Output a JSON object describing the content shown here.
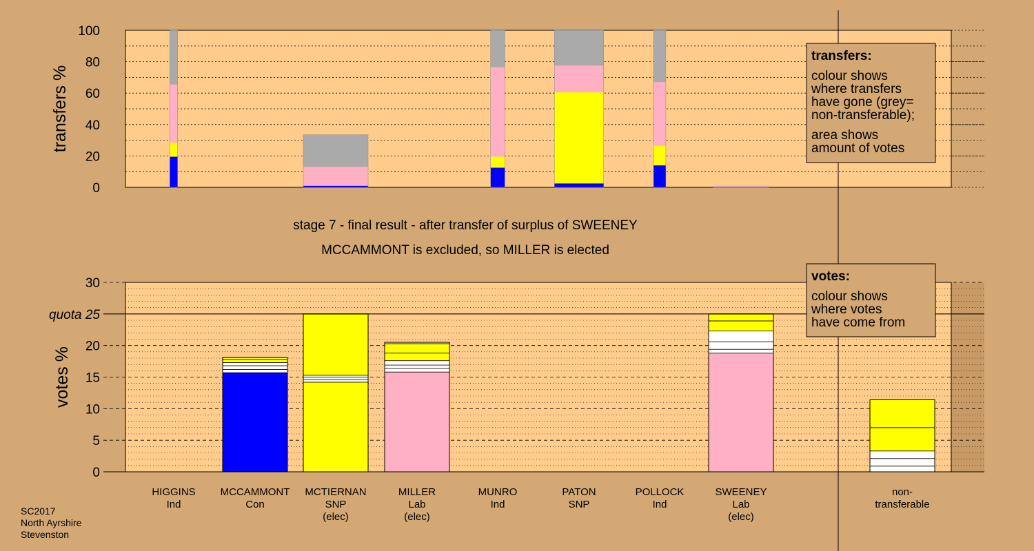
{
  "chart_data": [
    {
      "type": "bar",
      "stacked": true,
      "ylabel": "transfers %",
      "ylim": [
        0,
        100
      ],
      "yticks": [
        "0",
        "20",
        "40",
        "60",
        "80",
        "100"
      ],
      "grid": true,
      "categories": [
        "HIGGINS",
        "MCCAMMONT",
        "MCTIERNAN",
        "MILLER",
        "MUNRO",
        "PATON",
        "POLLOCK",
        "SWEENEY"
      ],
      "bars": [
        {
          "category": "HIGGINS",
          "width": 0.12,
          "segments": [
            {
              "color": "#0000ff",
              "value": 19.5
            },
            {
              "color": "#ffff00",
              "value": 9
            },
            {
              "color": "#ffb0c4",
              "value": 37
            },
            {
              "color": "#aaaaaa",
              "value": 34.5
            }
          ]
        },
        {
          "category": "MCTIERNAN",
          "width": 1.0,
          "segments": [
            {
              "color": "#0000ff",
              "value": 1
            },
            {
              "color": "#ffb0c4",
              "value": 12
            },
            {
              "color": "#aaaaaa",
              "value": 20.5
            }
          ]
        },
        {
          "category": "MUNRO",
          "width": 0.22,
          "segments": [
            {
              "color": "#0000ff",
              "value": 12.5
            },
            {
              "color": "#ffff00",
              "value": 7
            },
            {
              "color": "#ffb0c4",
              "value": 57
            },
            {
              "color": "#aaaaaa",
              "value": 23.5
            }
          ]
        },
        {
          "category": "PATON",
          "width": 0.76,
          "segments": [
            {
              "color": "#0000ff",
              "value": 2.5
            },
            {
              "color": "#ffff00",
              "value": 58
            },
            {
              "color": "#ffb0c4",
              "value": 17
            },
            {
              "color": "#aaaaaa",
              "value": 22.5
            }
          ]
        },
        {
          "category": "POLLOCK",
          "width": 0.19,
          "segments": [
            {
              "color": "#0000ff",
              "value": 14
            },
            {
              "color": "#ffff00",
              "value": 12.5
            },
            {
              "color": "#ffb0c4",
              "value": 40.5
            },
            {
              "color": "#aaaaaa",
              "value": 33
            }
          ]
        },
        {
          "category": "SWEENEY",
          "width": 0.86,
          "segments": [
            {
              "color": "#ffb0c4",
              "value": 0.8
            }
          ]
        }
      ],
      "legend": {
        "title": "transfers:",
        "lines": [
          "colour shows",
          "where transfers",
          "have gone (grey=",
          "non-transferable);",
          "area shows",
          "amount of votes"
        ]
      }
    },
    {
      "type": "bar",
      "stacked": true,
      "ylabel": "votes %",
      "ylim": [
        0,
        30
      ],
      "yticks": [
        "0",
        "5",
        "10",
        "15",
        "20",
        "25",
        "30"
      ],
      "quota": {
        "label": "quota",
        "value": 25
      },
      "grid": true,
      "categories": [
        "HIGGINS",
        "MCCAMMONT",
        "MCTIERNAN",
        "MILLER",
        "MUNRO",
        "PATON",
        "POLLOCK",
        "SWEENEY",
        "non-transferable"
      ],
      "bars": [
        {
          "category": "MCCAMMONT",
          "segments": [
            {
              "color": "#0000ff",
              "value": 15.7
            },
            {
              "color": "#ffffff",
              "value": 0.5
            },
            {
              "color": "#ffffff",
              "value": 0.6
            },
            {
              "color": "#ffffff",
              "value": 0.5
            },
            {
              "color": "#ffff00",
              "value": 0.5
            },
            {
              "color": "#ffff00",
              "value": 0.3
            }
          ]
        },
        {
          "category": "MCTIERNAN",
          "segments": [
            {
              "color": "#ffff00",
              "value": 14.2
            },
            {
              "color": "#ffffff",
              "value": 0.4
            },
            {
              "color": "#ffffff",
              "value": 0.4
            },
            {
              "color": "#ffffff",
              "value": 0.3
            },
            {
              "color": "#ffff00",
              "value": 9.7
            }
          ]
        },
        {
          "category": "MILLER",
          "segments": [
            {
              "color": "#ffb0c4",
              "value": 15.8
            },
            {
              "color": "#ffffff",
              "value": 0.6
            },
            {
              "color": "#ffffff",
              "value": 0.5
            },
            {
              "color": "#ffffff",
              "value": 0.7
            },
            {
              "color": "#ffff00",
              "value": 1.2
            },
            {
              "color": "#ffff00",
              "value": 1.5
            },
            {
              "color": "#ffffff",
              "value": 0.2
            }
          ]
        },
        {
          "category": "SWEENEY",
          "segments": [
            {
              "color": "#ffb0c4",
              "value": 18.8
            },
            {
              "color": "#ffffff",
              "value": 0.6
            },
            {
              "color": "#ffffff",
              "value": 1.2
            },
            {
              "color": "#ffffff",
              "value": 1.7
            },
            {
              "color": "#ffff00",
              "value": 1.6
            },
            {
              "color": "#ffff00",
              "value": 1.1
            }
          ]
        },
        {
          "category": "non-transferable",
          "segments": [
            {
              "color": "#ffffff",
              "value": 0.9
            },
            {
              "color": "#ffffff",
              "value": 1.2
            },
            {
              "color": "#ffffff",
              "value": 1.2
            },
            {
              "color": "#ffff00",
              "value": 3.7
            },
            {
              "color": "#ffff00",
              "value": 4.4
            }
          ]
        }
      ],
      "legend": {
        "title": "votes:",
        "lines": [
          "colour shows",
          "where votes",
          "have come from"
        ]
      }
    }
  ],
  "stage": {
    "line1": "stage 7 - final result - after transfer of surplus of SWEENEY",
    "line2": "MCCAMMONT is excluded, so MILLER is elected"
  },
  "candidates": [
    {
      "name": "HIGGINS",
      "party": "Ind",
      "note": ""
    },
    {
      "name": "MCCAMMONT",
      "party": "Con",
      "note": ""
    },
    {
      "name": "MCTIERNAN",
      "party": "SNP",
      "note": "(elec)"
    },
    {
      "name": "MILLER",
      "party": "Lab",
      "note": "(elec)"
    },
    {
      "name": "MUNRO",
      "party": "Ind",
      "note": ""
    },
    {
      "name": "PATON",
      "party": "SNP",
      "note": ""
    },
    {
      "name": "POLLOCK",
      "party": "Ind",
      "note": ""
    },
    {
      "name": "SWEENEY",
      "party": "Lab",
      "note": "(elec)"
    },
    {
      "name": "non-",
      "party": "transferable",
      "note": ""
    }
  ],
  "footer": [
    "SC2017",
    "North Ayrshire",
    "Stevenston"
  ]
}
